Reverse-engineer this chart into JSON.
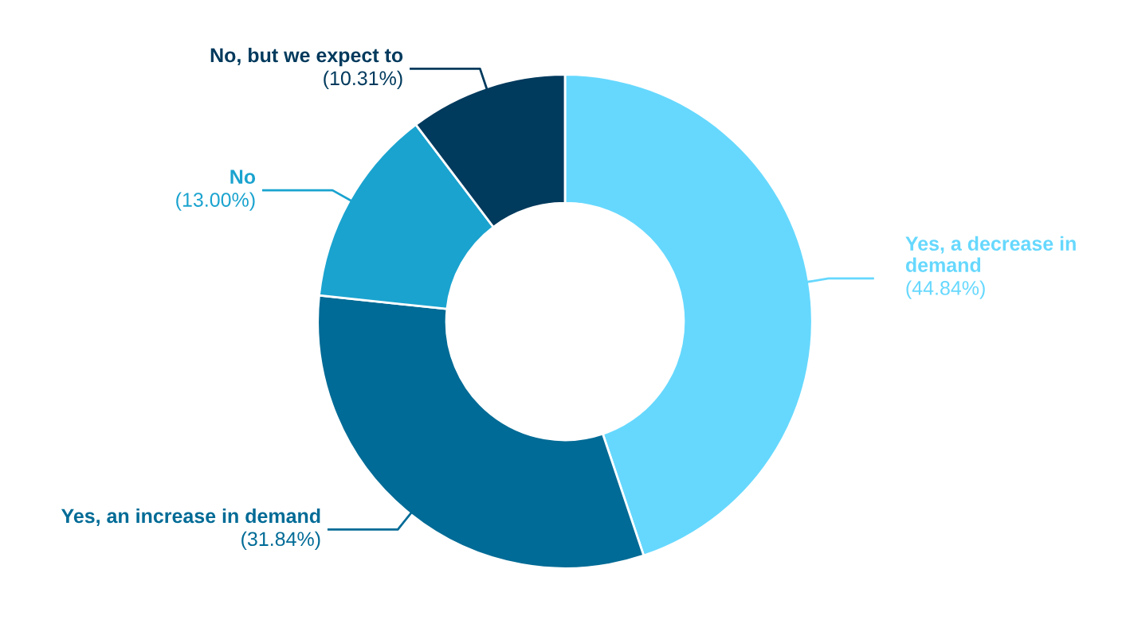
{
  "chart_data": {
    "type": "donut",
    "categories": [
      "Yes, a decrease in demand",
      "Yes, an increase in demand",
      "No",
      "No, but we expect to"
    ],
    "values": [
      44.84,
      31.84,
      13.0,
      10.31
    ],
    "value_labels": [
      "(44.84%)",
      "(31.84%)",
      "(13.00%)",
      "(10.31%)"
    ],
    "colors": [
      "#66d8fe",
      "#006b96",
      "#1aa3cf",
      "#003a5d"
    ],
    "legend": false
  }
}
